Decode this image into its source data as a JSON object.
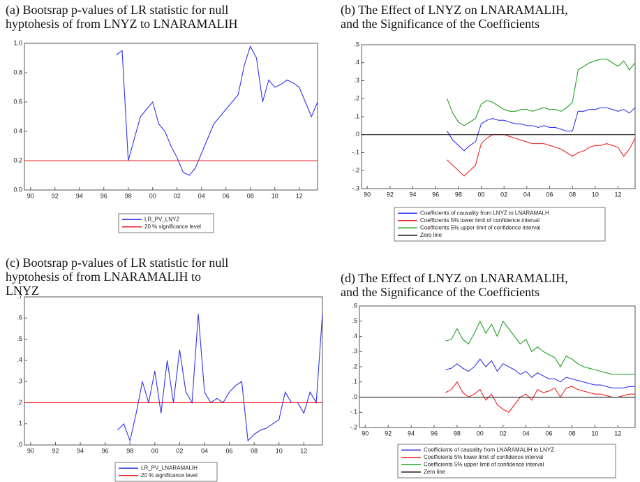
{
  "chart_data": [
    {
      "type": "line",
      "title": [
        "(a) Bootsrap p-values of LR statistic for null",
        "hyptohesis of from LNYZ to LNARAMALIH"
      ],
      "x": [
        1997,
        1997.5,
        1998,
        1998.5,
        1999,
        1999.5,
        2000,
        2000.5,
        2001,
        2001.5,
        2002,
        2002.5,
        2003,
        2003.5,
        2004,
        2004.5,
        2005,
        2005.5,
        2006,
        2006.5,
        2007,
        2007.5,
        2008,
        2008.5,
        2009,
        2009.5,
        2010,
        2010.5,
        2011,
        2011.5,
        2012,
        2012.5,
        2013,
        2013.5
      ],
      "series": [
        {
          "name": "LR_PV_LNYZ",
          "color": "#3333ee",
          "values": [
            0.92,
            0.95,
            0.2,
            0.35,
            0.5,
            0.55,
            0.6,
            0.45,
            0.4,
            0.3,
            0.22,
            0.12,
            0.1,
            0.15,
            0.25,
            0.35,
            0.45,
            0.5,
            0.55,
            0.6,
            0.65,
            0.85,
            0.98,
            0.9,
            0.6,
            0.75,
            0.7,
            0.72,
            0.75,
            0.73,
            0.7,
            0.6,
            0.5,
            0.6
          ]
        },
        {
          "name": "20 % significance level",
          "color": "#ee2222",
          "x": [
            1989.5,
            2013.5
          ],
          "values": [
            0.2,
            0.2
          ]
        }
      ],
      "xlim": [
        1989.5,
        2013.5
      ],
      "xticks": [
        {
          "value": 1990,
          "label": "90"
        },
        {
          "value": 1992,
          "label": "92"
        },
        {
          "value": 1994,
          "label": "94"
        },
        {
          "value": 1996,
          "label": "96"
        },
        {
          "value": 1998,
          "label": "98"
        },
        {
          "value": 2000,
          "label": "00"
        },
        {
          "value": 2002,
          "label": "02"
        },
        {
          "value": 2004,
          "label": "04"
        },
        {
          "value": 2006,
          "label": "06"
        },
        {
          "value": 2008,
          "label": "08"
        },
        {
          "value": 2010,
          "label": "10"
        },
        {
          "value": 2012,
          "label": "12"
        }
      ],
      "ylim": [
        0,
        1
      ],
      "yticks": [
        {
          "value": 0,
          "label": "0.0"
        },
        {
          "value": 0.2,
          "label": "0.2"
        },
        {
          "value": 0.4,
          "label": "0.4"
        },
        {
          "value": 0.6,
          "label": "0.6"
        },
        {
          "value": 0.8,
          "label": "0.8"
        },
        {
          "value": 1,
          "label": "1.0"
        }
      ]
    },
    {
      "type": "line",
      "title": [
        "(b) The Effect of LNYZ on LNARAMALIH,",
        "and the Significance of the Coefficients"
      ],
      "x": [
        1997,
        1997.5,
        1998,
        1998.5,
        1999,
        1999.5,
        2000,
        2000.5,
        2001,
        2001.5,
        2002,
        2002.5,
        2003,
        2003.5,
        2004,
        2004.5,
        2005,
        2005.5,
        2006,
        2006.5,
        2007,
        2007.5,
        2008,
        2008.5,
        2009,
        2009.5,
        2010,
        2010.5,
        2011,
        2011.5,
        2012,
        2012.5,
        2013,
        2013.5
      ],
      "series": [
        {
          "name": "Coefficients of causality from LNYZ to LNARAMALH",
          "color": "#3333ee",
          "values": [
            0.02,
            -0.03,
            -0.06,
            -0.09,
            -0.06,
            -0.04,
            0.06,
            0.08,
            0.09,
            0.08,
            0.08,
            0.07,
            0.06,
            0.06,
            0.05,
            0.05,
            0.04,
            0.05,
            0.04,
            0.04,
            0.03,
            0.02,
            0.02,
            0.13,
            0.13,
            0.14,
            0.14,
            0.15,
            0.15,
            0.14,
            0.13,
            0.14,
            0.12,
            0.15
          ]
        },
        {
          "name": "Coefficients 5% lower limit of confidence interval",
          "color": "#ee2222",
          "values": [
            -0.14,
            -0.17,
            -0.2,
            -0.23,
            -0.2,
            -0.17,
            -0.05,
            -0.02,
            0,
            0,
            0,
            -0.01,
            -0.02,
            -0.03,
            -0.04,
            -0.05,
            -0.05,
            -0.05,
            -0.06,
            -0.07,
            -0.08,
            -0.1,
            -0.12,
            -0.1,
            -0.09,
            -0.07,
            -0.06,
            -0.06,
            -0.05,
            -0.06,
            -0.07,
            -0.12,
            -0.08,
            -0.02
          ]
        },
        {
          "name": "Coefficients 5% upper limit of confidence interval",
          "color": "#22a022",
          "values": [
            0.2,
            0.12,
            0.07,
            0.05,
            0.07,
            0.09,
            0.17,
            0.19,
            0.18,
            0.16,
            0.14,
            0.13,
            0.13,
            0.14,
            0.14,
            0.13,
            0.14,
            0.15,
            0.14,
            0.14,
            0.13,
            0.15,
            0.18,
            0.36,
            0.38,
            0.4,
            0.41,
            0.42,
            0.42,
            0.4,
            0.38,
            0.41,
            0.36,
            0.4
          ]
        },
        {
          "name": "Zero line",
          "color": "#000000",
          "x": [
            1989.5,
            2013.5
          ],
          "values": [
            0,
            0
          ]
        }
      ],
      "xlim": [
        1989.5,
        2013.5
      ],
      "xticks": [
        {
          "value": 1990,
          "label": "90"
        },
        {
          "value": 1992,
          "label": "92"
        },
        {
          "value": 1994,
          "label": "94"
        },
        {
          "value": 1996,
          "label": "96"
        },
        {
          "value": 1998,
          "label": "98"
        },
        {
          "value": 2000,
          "label": "00"
        },
        {
          "value": 2002,
          "label": "02"
        },
        {
          "value": 2004,
          "label": "04"
        },
        {
          "value": 2006,
          "label": "06"
        },
        {
          "value": 2008,
          "label": "08"
        },
        {
          "value": 2010,
          "label": "10"
        },
        {
          "value": 2012,
          "label": "12"
        }
      ],
      "ylim": [
        -0.3,
        0.5
      ],
      "yticks": [
        {
          "value": 0.5,
          "label": ".5"
        },
        {
          "value": 0.4,
          "label": ".4"
        },
        {
          "value": 0.3,
          "label": ".3"
        },
        {
          "value": 0.2,
          "label": ".2"
        },
        {
          "value": 0.1,
          "label": ".1"
        },
        {
          "value": 0,
          "label": ".0"
        },
        {
          "value": -0.1,
          "label": "-.1"
        },
        {
          "value": -0.2,
          "label": "-.2"
        },
        {
          "value": -0.3,
          "label": "-.3"
        }
      ]
    },
    {
      "type": "line",
      "title": [
        "(c) Bootsrap p-values of LR statistic for null",
        "hyptohesis of from LNARAMALIH to",
        "LNYZ"
      ],
      "x": [
        1997,
        1997.5,
        1998,
        1998.5,
        1999,
        1999.5,
        2000,
        2000.5,
        2001,
        2001.5,
        2002,
        2002.5,
        2003,
        2003.5,
        2004,
        2004.5,
        2005,
        2005.5,
        2006,
        2006.5,
        2007,
        2007.5,
        2008,
        2008.5,
        2009,
        2009.5,
        2010,
        2010.5,
        2011,
        2011.5,
        2012,
        2012.5,
        2013,
        2013.5
      ],
      "series": [
        {
          "name": "LR_PV_LNARAMALIH",
          "color": "#3333ee",
          "values": [
            0.07,
            0.1,
            0.02,
            0.15,
            0.3,
            0.2,
            0.35,
            0.15,
            0.4,
            0.2,
            0.45,
            0.25,
            0.2,
            0.62,
            0.25,
            0.2,
            0.22,
            0.2,
            0.25,
            0.28,
            0.3,
            0.02,
            0.05,
            0.07,
            0.08,
            0.1,
            0.12,
            0.25,
            0.2,
            0.2,
            0.15,
            0.25,
            0.2,
            0.62
          ]
        },
        {
          "name": "20 % significance level",
          "color": "#ee2222",
          "x": [
            1989.5,
            2013.5
          ],
          "values": [
            0.2,
            0.2
          ]
        }
      ],
      "xlim": [
        1989.5,
        2013.5
      ],
      "xticks": [
        {
          "value": 1990,
          "label": "90"
        },
        {
          "value": 1992,
          "label": "92"
        },
        {
          "value": 1994,
          "label": "94"
        },
        {
          "value": 1996,
          "label": "96"
        },
        {
          "value": 1998,
          "label": "98"
        },
        {
          "value": 2000,
          "label": "00"
        },
        {
          "value": 2002,
          "label": "02"
        },
        {
          "value": 2004,
          "label": "04"
        },
        {
          "value": 2006,
          "label": "06"
        },
        {
          "value": 2008,
          "label": "08"
        },
        {
          "value": 2010,
          "label": "10"
        },
        {
          "value": 2012,
          "label": "12"
        }
      ],
      "ylim": [
        0,
        0.7
      ],
      "yticks": [
        {
          "value": 0,
          "label": ".0"
        },
        {
          "value": 0.1,
          "label": ".1"
        },
        {
          "value": 0.2,
          "label": ".2"
        },
        {
          "value": 0.3,
          "label": ".3"
        },
        {
          "value": 0.4,
          "label": ".4"
        },
        {
          "value": 0.5,
          "label": ".5"
        },
        {
          "value": 0.6,
          "label": ".6"
        },
        {
          "value": 0.7,
          "label": ".7"
        }
      ]
    },
    {
      "type": "line",
      "title": [
        "(d) The Effect of LNYZ on LNARAMALIH,",
        "and the Significance of the Coefficients"
      ],
      "x": [
        1997,
        1997.5,
        1998,
        1998.5,
        1999,
        1999.5,
        2000,
        2000.5,
        2001,
        2001.5,
        2002,
        2002.5,
        2003,
        2003.5,
        2004,
        2004.5,
        2005,
        2005.5,
        2006,
        2006.5,
        2007,
        2007.5,
        2008,
        2008.5,
        2009,
        2009.5,
        2010,
        2010.5,
        2011,
        2011.5,
        2012,
        2012.5,
        2013,
        2013.5
      ],
      "series": [
        {
          "name": "Coefficients of causality from LNARAMALIH to LNYZ",
          "color": "#3333ee",
          "values": [
            0.18,
            0.19,
            0.22,
            0.19,
            0.17,
            0.2,
            0.25,
            0.2,
            0.24,
            0.17,
            0.22,
            0.2,
            0.18,
            0.15,
            0.17,
            0.13,
            0.16,
            0.14,
            0.12,
            0.12,
            0.1,
            0.13,
            0.12,
            0.11,
            0.1,
            0.09,
            0.08,
            0.08,
            0.07,
            0.06,
            0.06,
            0.06,
            0.07,
            0.07
          ]
        },
        {
          "name": "Coefficients 5% lower limit of confidence interval",
          "color": "#ee2222",
          "values": [
            0.03,
            0.05,
            0.1,
            0.03,
            0,
            0.02,
            0.05,
            -0.02,
            0.02,
            -0.05,
            -0.08,
            -0.1,
            -0.05,
            0,
            0.02,
            -0.02,
            0.05,
            0.03,
            0.04,
            0.06,
            0,
            0.06,
            0.07,
            0.05,
            0.04,
            0.03,
            0.02,
            0.02,
            0.01,
            0,
            0,
            0.01,
            0.02,
            0.02
          ]
        },
        {
          "name": "Coefficients 5% upper limit of confidence interval",
          "color": "#22a022",
          "values": [
            0.37,
            0.38,
            0.45,
            0.38,
            0.35,
            0.42,
            0.5,
            0.42,
            0.48,
            0.4,
            0.5,
            0.45,
            0.4,
            0.35,
            0.38,
            0.3,
            0.33,
            0.3,
            0.28,
            0.26,
            0.2,
            0.27,
            0.25,
            0.22,
            0.2,
            0.19,
            0.18,
            0.17,
            0.16,
            0.15,
            0.15,
            0.15,
            0.15,
            0.15
          ]
        },
        {
          "name": "Zero line",
          "color": "#000000",
          "x": [
            1989.5,
            2013.5
          ],
          "values": [
            0,
            0
          ]
        }
      ],
      "xlim": [
        1989.5,
        2013.5
      ],
      "xticks": [
        {
          "value": 1990,
          "label": "90"
        },
        {
          "value": 1992,
          "label": "92"
        },
        {
          "value": 1994,
          "label": "94"
        },
        {
          "value": 1996,
          "label": "96"
        },
        {
          "value": 1998,
          "label": "98"
        },
        {
          "value": 2000,
          "label": "00"
        },
        {
          "value": 2002,
          "label": "02"
        },
        {
          "value": 2004,
          "label": "04"
        },
        {
          "value": 2006,
          "label": "06"
        },
        {
          "value": 2008,
          "label": "08"
        },
        {
          "value": 2010,
          "label": "10"
        },
        {
          "value": 2012,
          "label": "12"
        }
      ],
      "ylim": [
        -0.2,
        0.6
      ],
      "yticks": [
        {
          "value": 0.6,
          "label": ".6"
        },
        {
          "value": 0.5,
          "label": ".5"
        },
        {
          "value": 0.4,
          "label": ".4"
        },
        {
          "value": 0.3,
          "label": ".3"
        },
        {
          "value": 0.2,
          "label": ".2"
        },
        {
          "value": 0.1,
          "label": ".1"
        },
        {
          "value": 0,
          "label": ".0"
        },
        {
          "value": -0.1,
          "label": "-.1"
        },
        {
          "value": -0.2,
          "label": "-.2"
        }
      ]
    }
  ]
}
